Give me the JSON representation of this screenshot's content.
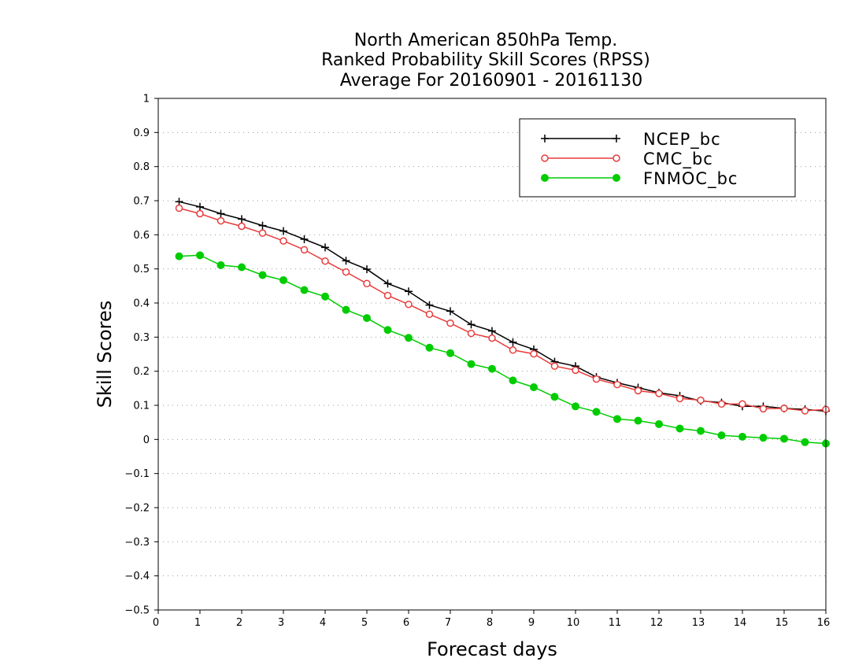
{
  "chart_data": {
    "type": "line",
    "title_lines": [
      "North American 850hPa Temp.",
      "Ranked Probability Skill Scores (RPSS)",
      "Average For 20160901 - 20161130"
    ],
    "xlabel": "Forecast days",
    "ylabel": "Skill Scores",
    "xlim": [
      0,
      16
    ],
    "ylim": [
      -0.5,
      1
    ],
    "x_ticks": [
      "0",
      "1",
      "2",
      "3",
      "4",
      "5",
      "6",
      "7",
      "8",
      "9",
      "10",
      "11",
      "12",
      "13",
      "14",
      "15",
      "16"
    ],
    "y_ticks": [
      "−0.5",
      "−0.4",
      "−0.3",
      "−0.2",
      "−0.1",
      "0",
      "0.1",
      "0.2",
      "0.3",
      "0.4",
      "0.5",
      "0.6",
      "0.7",
      "0.8",
      "0.9",
      "1"
    ],
    "grid": "horizontal-dotted",
    "legend_position": "top-right",
    "x": [
      0.5,
      1,
      1.5,
      2,
      2.5,
      3,
      3.5,
      4,
      4.5,
      5,
      5.5,
      6,
      6.5,
      7,
      7.5,
      8,
      8.5,
      9,
      9.5,
      10,
      10.5,
      11,
      11.5,
      12,
      12.5,
      13,
      13.5,
      14,
      14.5,
      15,
      15.5,
      16
    ],
    "series": [
      {
        "name": "NCEP_bc",
        "color": "#000000",
        "marker": "plus",
        "values": [
          0.697,
          0.682,
          0.662,
          0.646,
          0.627,
          0.611,
          0.587,
          0.563,
          0.524,
          0.499,
          0.457,
          0.434,
          0.394,
          0.376,
          0.337,
          0.318,
          0.285,
          0.264,
          0.228,
          0.215,
          0.183,
          0.166,
          0.152,
          0.137,
          0.128,
          0.113,
          0.108,
          0.097,
          0.097,
          0.091,
          0.088,
          0.083
        ]
      },
      {
        "name": "CMC_bc",
        "color": "#e83c3c",
        "marker": "open-circle",
        "values": [
          0.678,
          0.662,
          0.641,
          0.625,
          0.605,
          0.582,
          0.556,
          0.523,
          0.491,
          0.457,
          0.422,
          0.396,
          0.367,
          0.341,
          0.311,
          0.297,
          0.262,
          0.251,
          0.215,
          0.203,
          0.177,
          0.161,
          0.143,
          0.135,
          0.12,
          0.115,
          0.104,
          0.104,
          0.09,
          0.091,
          0.084,
          0.088
        ]
      },
      {
        "name": "FNMOC_bc",
        "color": "#00cc00",
        "marker": "filled-circle",
        "values": [
          0.537,
          0.54,
          0.511,
          0.505,
          0.482,
          0.467,
          0.438,
          0.419,
          0.38,
          0.356,
          0.321,
          0.298,
          0.269,
          0.253,
          0.221,
          0.207,
          0.173,
          0.153,
          0.125,
          0.097,
          0.081,
          0.06,
          0.055,
          0.045,
          0.032,
          0.025,
          0.012,
          0.008,
          0.005,
          0.002,
          -0.008,
          -0.012
        ]
      }
    ]
  }
}
